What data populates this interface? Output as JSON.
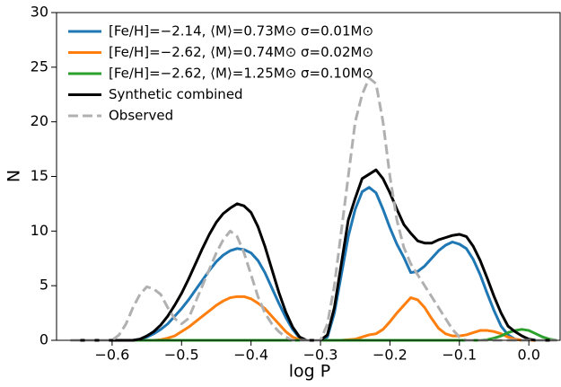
{
  "chart_data": {
    "type": "line",
    "xlabel": "log P",
    "ylabel": "N",
    "xlim": [
      -0.68,
      0.045
    ],
    "ylim": [
      0,
      30
    ],
    "xticks": [
      {
        "value": -0.6,
        "label": "−0.6"
      },
      {
        "value": -0.5,
        "label": "−0.5"
      },
      {
        "value": -0.4,
        "label": "−0.4"
      },
      {
        "value": -0.3,
        "label": "−0.3"
      },
      {
        "value": -0.2,
        "label": "−0.2"
      },
      {
        "value": -0.1,
        "label": "−0.1"
      },
      {
        "value": 0,
        "label": "0.0"
      }
    ],
    "yticks": [
      0,
      5,
      10,
      15,
      20,
      25,
      30
    ],
    "legend": "upper left",
    "x": [
      -0.66,
      -0.65,
      -0.64,
      -0.63,
      -0.62,
      -0.61,
      -0.6,
      -0.59,
      -0.58,
      -0.57,
      -0.56,
      -0.55,
      -0.54,
      -0.53,
      -0.52,
      -0.51,
      -0.5,
      -0.49,
      -0.48,
      -0.47,
      -0.46,
      -0.45,
      -0.44,
      -0.43,
      -0.42,
      -0.41,
      -0.4,
      -0.39,
      -0.38,
      -0.37,
      -0.36,
      -0.35,
      -0.34,
      -0.33,
      -0.32,
      -0.31,
      -0.3,
      -0.29,
      -0.28,
      -0.27,
      -0.26,
      -0.25,
      -0.24,
      -0.23,
      -0.22,
      -0.21,
      -0.2,
      -0.19,
      -0.18,
      -0.17,
      -0.16,
      -0.15,
      -0.14,
      -0.13,
      -0.12,
      -0.11,
      -0.1,
      -0.09,
      -0.08,
      -0.07,
      -0.06,
      -0.05,
      -0.04,
      -0.03,
      -0.02,
      -0.01,
      0,
      0.01,
      0.02,
      0.03,
      0.04
    ],
    "series": [
      {
        "name": "[Fe/H]=−2.14, ⟨M⟩=0.73M⊙ σ=0.01M⊙",
        "color": "#1f77b4",
        "dashed": false,
        "values": [
          0,
          0,
          0,
          0,
          0,
          0,
          0,
          0,
          0,
          0,
          0.1,
          0.3,
          0.6,
          1,
          1.5,
          2.2,
          2.9,
          3.7,
          4.6,
          5.5,
          6.4,
          7.2,
          7.8,
          8.2,
          8.4,
          8.3,
          8,
          7.3,
          6.2,
          4.8,
          3.4,
          2.1,
          1,
          0.2,
          0,
          0,
          0,
          0.3,
          2.5,
          6,
          9.5,
          12,
          13.6,
          14,
          13.5,
          12,
          10.3,
          8.8,
          7.6,
          6.2,
          6.3,
          6.8,
          7.5,
          8.2,
          8.7,
          9,
          8.8,
          8.4,
          7.4,
          6,
          4.3,
          2.7,
          1.3,
          0.5,
          0.1,
          0,
          0,
          0,
          0,
          0,
          0
        ]
      },
      {
        "name": "[Fe/H]=−2.62, ⟨M⟩=0.74M⊙ σ=0.02M⊙",
        "color": "#ff7f0e",
        "dashed": false,
        "values": [
          0,
          0,
          0,
          0,
          0,
          0,
          0,
          0,
          0,
          0,
          0,
          0,
          0,
          0.05,
          0.2,
          0.4,
          0.8,
          1.2,
          1.7,
          2.2,
          2.7,
          3.2,
          3.6,
          3.9,
          4,
          4,
          3.8,
          3.4,
          2.9,
          2.2,
          1.5,
          0.8,
          0.3,
          0.05,
          0,
          0,
          0,
          0,
          0,
          0,
          0.05,
          0.1,
          0.3,
          0.5,
          0.6,
          1,
          1.7,
          2.5,
          3.2,
          3.9,
          3.7,
          3,
          2,
          1.1,
          0.6,
          0.4,
          0.4,
          0.5,
          0.7,
          0.9,
          0.9,
          0.8,
          0.6,
          0.3,
          0.1,
          0,
          0,
          0,
          0,
          0,
          0
        ]
      },
      {
        "name": "[Fe/H]=−2.62, ⟨M⟩=1.25M⊙ σ=0.10M⊙",
        "color": "#2ca02c",
        "dashed": false,
        "values": [
          0,
          0,
          0,
          0,
          0,
          0,
          0,
          0,
          0,
          0,
          0,
          0,
          0,
          0,
          0,
          0,
          0,
          0,
          0,
          0,
          0,
          0,
          0,
          0,
          0,
          0,
          0,
          0,
          0,
          0,
          0,
          0,
          0,
          0,
          0,
          0,
          0,
          0,
          0,
          0,
          0,
          0,
          0,
          0,
          0,
          0,
          0,
          0,
          0,
          0,
          0,
          0,
          0,
          0,
          0,
          0,
          0,
          0,
          0,
          0,
          0.05,
          0.2,
          0.4,
          0.7,
          0.9,
          1,
          0.9,
          0.6,
          0.3,
          0.1,
          0
        ]
      },
      {
        "name": "Synthetic combined",
        "color": "#000000",
        "dashed": false,
        "values": [
          0,
          0,
          0,
          0,
          0,
          0,
          0,
          0,
          0,
          0,
          0.1,
          0.4,
          0.8,
          1.4,
          2.2,
          3.2,
          4.3,
          5.6,
          7,
          8.4,
          9.7,
          10.8,
          11.6,
          12.1,
          12.5,
          12.3,
          11.7,
          10.4,
          8.6,
          6.5,
          4.4,
          2.6,
          1.2,
          0.3,
          0,
          0,
          0,
          0.5,
          3,
          7,
          11,
          13,
          14.8,
          15.2,
          15.6,
          14.8,
          13.5,
          12,
          10.6,
          9.8,
          9.1,
          8.9,
          8.9,
          9.2,
          9.4,
          9.6,
          9.7,
          9.5,
          8.6,
          7.3,
          5.7,
          4,
          2.5,
          1.3,
          0.8,
          0.4,
          0.1,
          0,
          0,
          0,
          0
        ]
      },
      {
        "name": "Observed",
        "color": "#b0b0b0",
        "dashed": true,
        "values": [
          0,
          0,
          0,
          0,
          0,
          0,
          0,
          0.5,
          1.5,
          3,
          4.2,
          4.9,
          4.7,
          4.2,
          3,
          2,
          1.5,
          2,
          3.5,
          5,
          6.5,
          8,
          9.2,
          10,
          9.5,
          8,
          6,
          4,
          2.5,
          1.5,
          0.8,
          0.3,
          0,
          0,
          0,
          0,
          0,
          1.5,
          5,
          10,
          15,
          20,
          22.5,
          24,
          23.5,
          20,
          15,
          11,
          8.5,
          7,
          6,
          5,
          4,
          3,
          2,
          1,
          0.3,
          0,
          0,
          0,
          0,
          0,
          0,
          0,
          0,
          0,
          0,
          0,
          0,
          0,
          0
        ]
      }
    ]
  }
}
